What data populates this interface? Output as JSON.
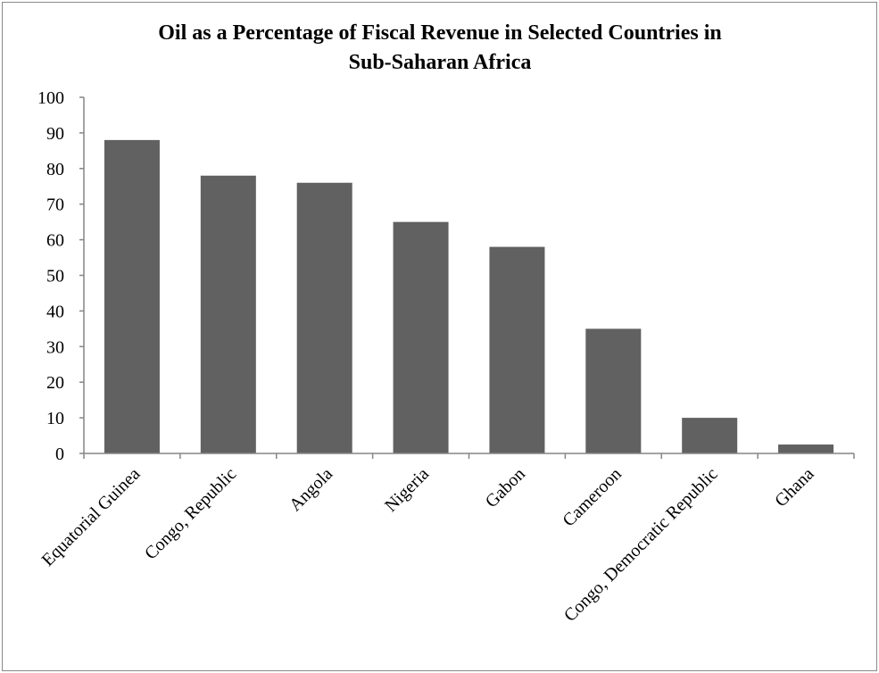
{
  "chart_data": {
    "type": "bar",
    "title": "Oil as a Percentage of Fiscal Revenue in Selected Countries in Sub-Saharan Africa",
    "title_lines": [
      "Oil as a Percentage of Fiscal Revenue in Selected Countries in",
      "Sub-Saharan Africa"
    ],
    "categories": [
      "Equatorial Guinea",
      "Congo, Republic",
      "Angola",
      "Nigeria",
      "Gabon",
      "Cameroon",
      "Congo, Democratic Republic",
      "Ghana"
    ],
    "values": [
      88,
      78,
      76,
      65,
      58,
      35,
      10,
      2.5
    ],
    "ylim": [
      0,
      100
    ],
    "yticks": [
      "0",
      "10",
      "20",
      "30",
      "40",
      "50",
      "60",
      "70",
      "80",
      "90",
      "100"
    ],
    "grid": false,
    "legend": "none",
    "bar_color": "#616161",
    "axis_color": "#868686"
  }
}
